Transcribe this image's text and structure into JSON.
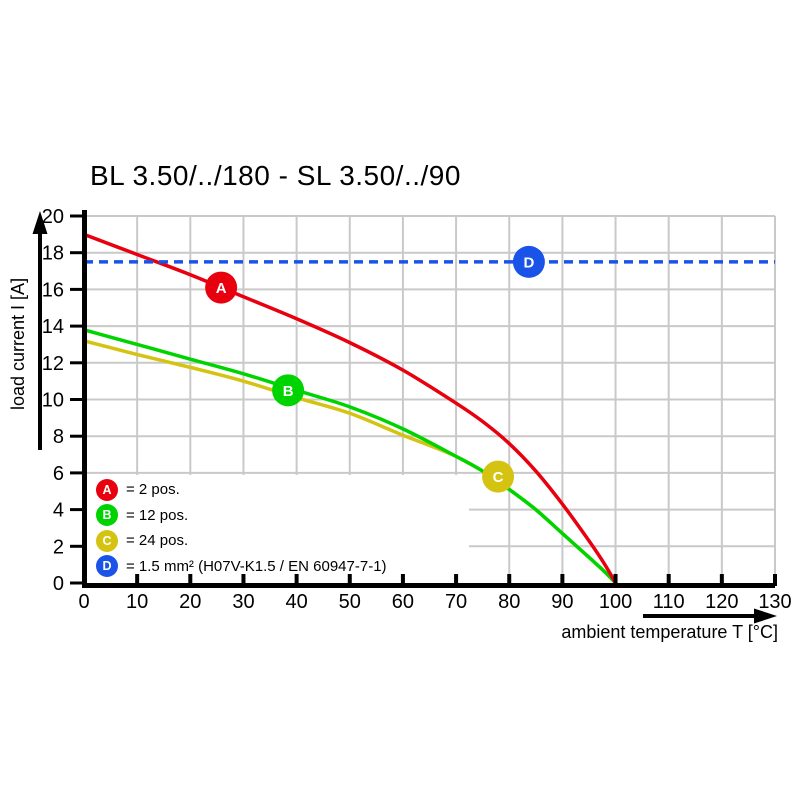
{
  "chart_data": {
    "type": "line",
    "title": "BL 3.50/../180 - SL 3.50/../90",
    "xlabel": "ambient temperature T [°C]",
    "ylabel": "load current I [A]",
    "xlim": [
      0,
      130
    ],
    "ylim": [
      0,
      20
    ],
    "x_ticks": [
      0,
      10,
      20,
      30,
      40,
      50,
      60,
      70,
      80,
      90,
      100,
      110,
      120,
      130
    ],
    "y_ticks": [
      0,
      2,
      4,
      6,
      8,
      10,
      12,
      14,
      16,
      18,
      20
    ],
    "grid": true,
    "grid_color": "#c9c9c9",
    "legend_position": "lower left",
    "series": [
      {
        "name": "C",
        "legend": "= 24 pos.",
        "color": "#d4c310",
        "style": "solid",
        "points": [
          [
            0,
            13.2
          ],
          [
            10,
            12.45
          ],
          [
            20,
            11.75
          ],
          [
            30,
            11.0
          ],
          [
            40,
            10.1
          ],
          [
            50,
            9.25
          ],
          [
            60,
            8.05
          ],
          [
            65,
            7.5
          ],
          [
            70,
            6.9
          ],
          [
            75,
            6.1
          ],
          [
            80,
            5.1
          ],
          [
            85,
            4.0
          ],
          [
            90,
            2.7
          ],
          [
            95,
            1.4
          ],
          [
            98,
            0.6
          ],
          [
            100,
            0
          ]
        ]
      },
      {
        "name": "B",
        "legend": "= 12 pos.",
        "color": "#00d400",
        "style": "solid",
        "points": [
          [
            0,
            13.8
          ],
          [
            10,
            13.0
          ],
          [
            20,
            12.2
          ],
          [
            30,
            11.4
          ],
          [
            40,
            10.5
          ],
          [
            50,
            9.6
          ],
          [
            60,
            8.4
          ],
          [
            70,
            6.9
          ],
          [
            75,
            6.1
          ],
          [
            80,
            5.1
          ],
          [
            85,
            4.0
          ],
          [
            90,
            2.7
          ],
          [
            95,
            1.4
          ],
          [
            98,
            0.6
          ],
          [
            100,
            0
          ]
        ]
      },
      {
        "name": "A",
        "legend": "= 2 pos.",
        "color": "#e8000f",
        "style": "solid",
        "points": [
          [
            0,
            19
          ],
          [
            10,
            17.9
          ],
          [
            20,
            16.8
          ],
          [
            30,
            15.6
          ],
          [
            40,
            14.4
          ],
          [
            50,
            13.1
          ],
          [
            60,
            11.6
          ],
          [
            70,
            9.8
          ],
          [
            75,
            8.8
          ],
          [
            80,
            7.6
          ],
          [
            85,
            6.1
          ],
          [
            90,
            4.3
          ],
          [
            95,
            2.3
          ],
          [
            98,
            1.0
          ],
          [
            100,
            0
          ]
        ]
      },
      {
        "name": "D",
        "legend": "= 1.5 mm² (H07V-K1.5 / EN 60947-7-1)",
        "color": "#1a53e8",
        "style": "dashed",
        "points": [
          [
            0,
            17.5
          ],
          [
            130,
            17.5
          ]
        ]
      }
    ],
    "markers": [
      {
        "key": "A",
        "t": 25.8,
        "i": 16.1,
        "color": "#e8000f"
      },
      {
        "key": "B",
        "t": 38.4,
        "i": 10.5,
        "color": "#00d400"
      },
      {
        "key": "C",
        "t": 77.9,
        "i": 5.8,
        "color": "#d4c310"
      },
      {
        "key": "D",
        "t": 83.7,
        "i": 17.5,
        "color": "#1a53e8"
      }
    ]
  },
  "legend": {
    "items": [
      {
        "key": "A",
        "text": "= 2 pos.",
        "color": "#e8000f"
      },
      {
        "key": "B",
        "text": "= 12 pos.",
        "color": "#00d400"
      },
      {
        "key": "C",
        "text": "= 24 pos.",
        "color": "#d4c310"
      },
      {
        "key": "D",
        "text": "= 1.5 mm² (H07V-K1.5 / EN 60947-7-1)",
        "color": "#1a53e8"
      }
    ]
  }
}
